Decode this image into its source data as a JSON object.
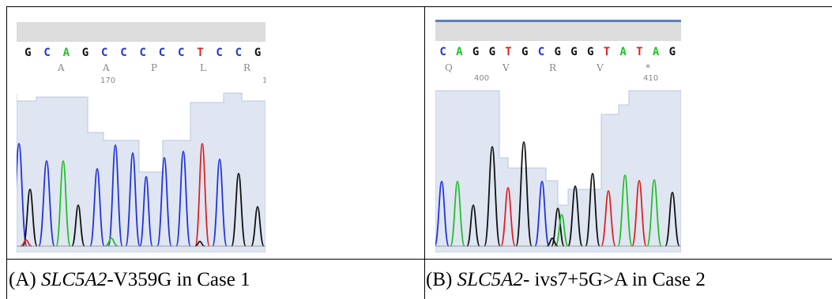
{
  "figure": {
    "panel_a": {
      "caption_prefix": "(A) ",
      "caption_gene": "SLC5A2",
      "caption_rest": "-V359G in Case 1",
      "bases": [
        "G",
        "C",
        "A",
        "G",
        "C",
        "C",
        "C",
        "C",
        "C",
        "T",
        "C",
        "C",
        "G"
      ],
      "amino_acids": [
        "A",
        "A",
        "P",
        "L",
        "R"
      ],
      "position_numbers": [
        "170",
        "1"
      ]
    },
    "panel_b": {
      "caption_prefix": "(B) ",
      "caption_gene": "SLC5A2",
      "caption_rest": "- ivs7+5G>A in Case 2",
      "bases": [
        "C",
        "A",
        "G",
        "G",
        "T",
        "G",
        "C",
        "G",
        "G",
        "G",
        "T",
        "A",
        "T",
        "A",
        "G"
      ],
      "amino_acids": [
        "Q",
        "V",
        "R",
        "V",
        "*"
      ],
      "position_numbers": [
        "400",
        "410"
      ]
    },
    "colors": {
      "A": "#22c12a",
      "C": "#2233dd",
      "G": "#111111",
      "T": "#dd2222",
      "header_bar": "#dcdcdc",
      "quality_fill": "#dfe6f2",
      "quality_line": "#b9c6de",
      "muted_text": "#888888"
    }
  }
}
